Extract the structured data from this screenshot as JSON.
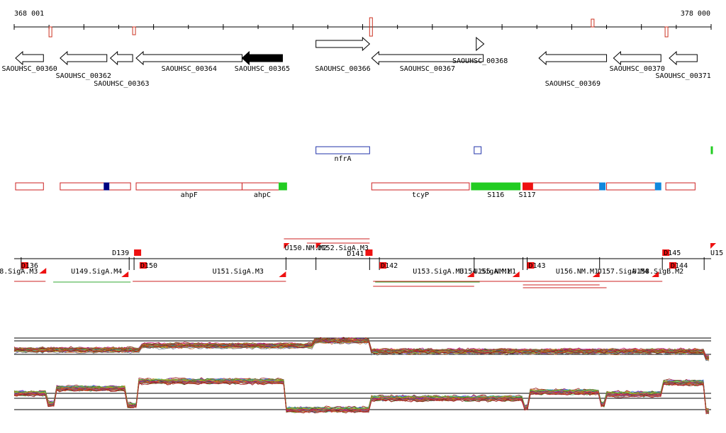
{
  "ruler": {
    "start_label": "368 001",
    "end_label": "378 000",
    "ticks": [
      0.5,
      1,
      1.5,
      2,
      2.5,
      3,
      3.5,
      4,
      4.5,
      5,
      5.5,
      6,
      6.5,
      7,
      7.5,
      8,
      8.5,
      9,
      9.5,
      10
    ],
    "tick_color": "#000000",
    "marker_color": "#cc3322",
    "markers": [
      {
        "pos": 0.52,
        "dir": "down",
        "h": "big"
      },
      {
        "pos": 1.72,
        "dir": "down",
        "h": "small"
      },
      {
        "pos": 5.12,
        "dir": "both",
        "h": "big"
      },
      {
        "pos": 8.3,
        "dir": "up",
        "h": "small"
      },
      {
        "pos": 9.36,
        "dir": "down",
        "h": "big"
      }
    ]
  },
  "genes": [
    {
      "name": "SAOUHSC_00360",
      "start": 0.02,
      "end": 0.42,
      "strand": "-",
      "fill": "#ffffff",
      "row": 0,
      "label_row": 0
    },
    {
      "name": "SAOUHSC_00362",
      "start": 0.66,
      "end": 1.33,
      "strand": "-",
      "fill": "#ffffff",
      "row": 0,
      "label_row": 1
    },
    {
      "name": "SAOUHSC_00363",
      "start": 1.38,
      "end": 1.7,
      "strand": "-",
      "fill": "#ffffff",
      "row": 0,
      "label_row": 2
    },
    {
      "name": "SAOUHSC_00364",
      "start": 1.75,
      "end": 3.27,
      "strand": "-",
      "fill": "#ffffff",
      "row": 0,
      "label_row": 0
    },
    {
      "name": "SAOUHSC_00365",
      "start": 3.27,
      "end": 3.85,
      "strand": "-",
      "fill": "#000000",
      "row": 0,
      "label_row": 0
    },
    {
      "name": "SAOUHSC_00366",
      "start": 4.33,
      "end": 5.1,
      "strand": "+",
      "fill": "#ffffff",
      "row": -1,
      "label_row": 0
    },
    {
      "name": "SAOUHSC_00367",
      "start": 5.13,
      "end": 6.73,
      "strand": "-",
      "fill": "#ffffff",
      "row": 0,
      "label_row": 0
    },
    {
      "name": "SAOUHSC_00368",
      "start": 6.63,
      "end": 6.74,
      "strand": "+",
      "fill": "#ffffff",
      "row": -1,
      "label_row": -1
    },
    {
      "name": "SAOUHSC_00369",
      "start": 7.53,
      "end": 8.5,
      "strand": "-",
      "fill": "#ffffff",
      "row": 0,
      "label_row": 2
    },
    {
      "name": "SAOUHSC_00370",
      "start": 8.6,
      "end": 9.28,
      "strand": "-",
      "fill": "#ffffff",
      "row": 0,
      "label_row": 0
    },
    {
      "name": "SAOUHSC_00371",
      "start": 9.4,
      "end": 9.8,
      "strand": "-",
      "fill": "#ffffff",
      "row": 0,
      "label_row": 1
    }
  ],
  "features_top": [
    {
      "name": "nfrA",
      "start": 4.33,
      "end": 5.1,
      "color": "#2233aa"
    },
    {
      "name": "",
      "start": 6.6,
      "end": 6.7,
      "color": "#2233aa"
    },
    {
      "name": "",
      "start": 10.0,
      "end": 10.02,
      "color": "#22cc22",
      "fill": true
    }
  ],
  "features_mid": [
    {
      "name": "",
      "start": 0.02,
      "end": 0.42,
      "stroke": "#cc2222",
      "fill": "none"
    },
    {
      "name": "",
      "start": 0.66,
      "end": 1.67,
      "stroke": "#cc2222",
      "fill": "none"
    },
    {
      "name": "",
      "start": 1.29,
      "end": 1.36,
      "stroke": "#000080",
      "fill": "#000080"
    },
    {
      "name": "ahpF",
      "start": 1.75,
      "end": 3.27,
      "stroke": "#cc2222",
      "fill": "none"
    },
    {
      "name": "ahpC",
      "start": 3.27,
      "end": 3.85,
      "stroke": "#cc2222",
      "fill": "none"
    },
    {
      "name": "",
      "start": 3.8,
      "end": 3.91,
      "stroke": "#22cc22",
      "fill": "#22cc22"
    },
    {
      "name": "tcyP",
      "start": 5.13,
      "end": 6.53,
      "stroke": "#cc2222",
      "fill": "none"
    },
    {
      "name": "S116",
      "start": 6.56,
      "end": 7.26,
      "stroke": "#22cc22",
      "fill": "#22cc22"
    },
    {
      "name": "S117",
      "start": 7.3,
      "end": 8.4,
      "stroke": "#cc2222",
      "fill": "none"
    },
    {
      "name": "",
      "start": 7.3,
      "end": 7.44,
      "stroke": "#ee1111",
      "fill": "#ee1111"
    },
    {
      "name": "",
      "start": 8.4,
      "end": 8.48,
      "stroke": "#1188dd",
      "fill": "#1188dd"
    },
    {
      "name": "",
      "start": 8.5,
      "end": 9.2,
      "stroke": "#cc2222",
      "fill": "none"
    },
    {
      "name": "",
      "start": 9.2,
      "end": 9.28,
      "stroke": "#1188dd",
      "fill": "#1188dd"
    },
    {
      "name": "",
      "start": 9.35,
      "end": 9.77,
      "stroke": "#cc2222",
      "fill": "none"
    }
  ],
  "transcripts": {
    "labels": [
      {
        "text": "D136",
        "pos": 0.08,
        "side": "right",
        "row": 1
      },
      {
        "text": "8.SigA.M3",
        "pos": 0.36,
        "side": "left",
        "row": 2
      },
      {
        "text": "U149.SigA.M4",
        "pos": 1.57,
        "side": "left",
        "row": 2
      },
      {
        "text": "D139",
        "pos": 1.67,
        "side": "left",
        "row": -1
      },
      {
        "text": "D150",
        "pos": 1.79,
        "side": "right",
        "row": 1
      },
      {
        "text": "U151.SigA.M3",
        "pos": 3.6,
        "side": "left",
        "row": 2
      },
      {
        "text": "U150.NM.M2",
        "pos": 3.86,
        "side": "right",
        "row": 0
      },
      {
        "text": "U152.SigA.M3",
        "pos": 4.33,
        "side": "right",
        "row": 0
      },
      {
        "text": "D141",
        "pos": 5.04,
        "side": "left",
        "row": -0.5
      },
      {
        "text": "D142",
        "pos": 5.24,
        "side": "right",
        "row": 1
      },
      {
        "text": "U153.SigA.M3",
        "pos": 5.7,
        "side": "right",
        "row": 2
      },
      {
        "text": "U154.SigA.M1",
        "pos": 6.37,
        "side": "right",
        "row": 2
      },
      {
        "text": "U155.NM.M1",
        "pos": 6.57,
        "side": "right",
        "row": 2
      },
      {
        "text": "D143",
        "pos": 7.36,
        "side": "right",
        "row": 1
      },
      {
        "text": "U156.NM.M1",
        "pos": 7.75,
        "side": "right",
        "row": 2
      },
      {
        "text": "U157.SigA.M4",
        "pos": 8.35,
        "side": "right",
        "row": 2
      },
      {
        "text": "U158.SigB.M2",
        "pos": 8.85,
        "side": "right",
        "row": 2
      },
      {
        "text": "D145",
        "pos": 9.3,
        "side": "right",
        "row": -1
      },
      {
        "text": "D144",
        "pos": 9.4,
        "side": "right",
        "row": 1
      },
      {
        "text": "U15",
        "pos": 9.97,
        "side": "right",
        "row": -1
      }
    ]
  },
  "tracks": {
    "line_color": "#000000",
    "palette": [
      "#8b0000",
      "#cc3333",
      "#228b22",
      "#556b2f",
      "#4169e1",
      "#8a2be2",
      "#d2691e",
      "#20b2aa",
      "#b8860b",
      "#ff8c00",
      "#2f4f4f",
      "#9acd32",
      "#c71585",
      "#6b8e23",
      "#a0522d",
      "#708090"
    ]
  }
}
